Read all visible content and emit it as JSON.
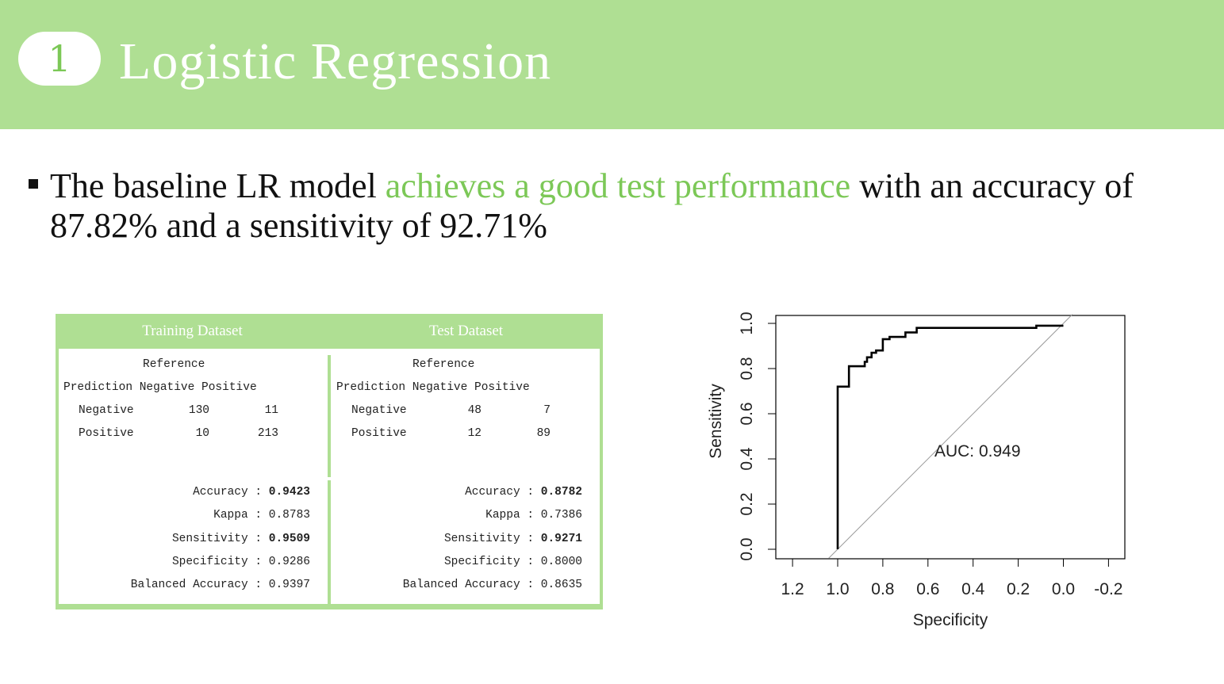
{
  "header": {
    "section_number": "1",
    "title": "Logistic Regression"
  },
  "bullet": {
    "text_before": "The baseline LR model ",
    "highlight": "achieves a good test performance",
    "text_after": " with an accuracy of 87.82% and a sensitivity of 92.71%"
  },
  "colors": {
    "accent_green": "#afdf93",
    "highlight_green": "#7cc857"
  },
  "confusion": {
    "training": {
      "title": "Training Dataset",
      "reference_label": "Reference",
      "col_header": "Prediction Negative Positive",
      "row_neg": {
        "label": "Negative",
        "neg": "130",
        "pos": "11"
      },
      "row_pos": {
        "label": "Positive",
        "neg": "10",
        "pos": "213"
      },
      "stats": {
        "accuracy": {
          "label": "Accuracy : ",
          "value": "0.9423"
        },
        "kappa": {
          "label": "Kappa : ",
          "value": "0.8783"
        },
        "sensitivity": {
          "label": "Sensitivity : ",
          "value": "0.9509"
        },
        "specificity": {
          "label": "Specificity : ",
          "value": "0.9286"
        },
        "balanced": {
          "label": "Balanced Accuracy : ",
          "value": "0.9397"
        }
      }
    },
    "test": {
      "title": "Test Dataset",
      "reference_label": "Reference",
      "col_header": "Prediction Negative Positive",
      "row_neg": {
        "label": "Negative",
        "neg": "48",
        "pos": "7"
      },
      "row_pos": {
        "label": "Positive",
        "neg": "12",
        "pos": "89"
      },
      "stats": {
        "accuracy": {
          "label": "Accuracy : ",
          "value": "0.8782"
        },
        "kappa": {
          "label": "Kappa : ",
          "value": "0.7386"
        },
        "sensitivity": {
          "label": "Sensitivity : ",
          "value": "0.9271"
        },
        "specificity": {
          "label": "Specificity : ",
          "value": "0.8000"
        },
        "balanced": {
          "label": "Balanced Accuracy : ",
          "value": "0.8635"
        }
      }
    }
  },
  "chart_data": {
    "type": "line",
    "xlabel": "Specificity",
    "ylabel": "Sensitivity",
    "xlim": [
      1.2,
      -0.2
    ],
    "ylim": [
      0.0,
      1.0
    ],
    "x_ticks": [
      "1.2",
      "1.0",
      "0.8",
      "0.6",
      "0.4",
      "0.2",
      "0.0",
      "-0.2"
    ],
    "x_tick_values": [
      1.2,
      1.0,
      0.8,
      0.6,
      0.4,
      0.2,
      0.0,
      -0.2
    ],
    "y_ticks": [
      "0.0",
      "0.2",
      "0.4",
      "0.6",
      "0.8",
      "1.0"
    ],
    "y_tick_values": [
      0.0,
      0.2,
      0.4,
      0.6,
      0.8,
      1.0
    ],
    "annotation": "AUC: 0.949",
    "annotation_at": {
      "x": 0.5,
      "y": 0.45
    },
    "series": [
      {
        "x": [
          1.0,
          1.0,
          0.95,
          0.95,
          0.88,
          0.88,
          0.87,
          0.87,
          0.85,
          0.85,
          0.83,
          0.83,
          0.8,
          0.8,
          0.77,
          0.77,
          0.7,
          0.7,
          0.65,
          0.65,
          0.12,
          0.12,
          0.0
        ],
        "y": [
          0.0,
          0.72,
          0.72,
          0.81,
          0.81,
          0.83,
          0.83,
          0.85,
          0.85,
          0.87,
          0.87,
          0.88,
          0.88,
          0.93,
          0.93,
          0.94,
          0.94,
          0.96,
          0.96,
          0.98,
          0.98,
          0.99,
          0.99
        ]
      }
    ],
    "reference_line": {
      "x": [
        1.0,
        0.0
      ],
      "y": [
        0.0,
        1.0
      ]
    }
  }
}
